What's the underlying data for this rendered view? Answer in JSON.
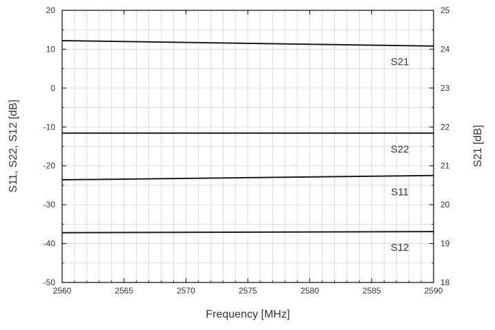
{
  "chart_data": {
    "type": "line",
    "xlabel": "Frequency [MHz]",
    "ylabel_left": "S11, S22, S12 [dB]",
    "ylabel_right": "S21 [dB]",
    "xlim": [
      2560,
      2590
    ],
    "ylim_left": [
      -50,
      20
    ],
    "ylim_right": [
      18,
      25
    ],
    "x_ticks": [
      "2560",
      "2565",
      "2570",
      "2575",
      "2580",
      "2585",
      "2590"
    ],
    "y_left_ticks": [
      "20",
      "10",
      "0",
      "-10",
      "-20",
      "-30",
      "-40",
      "-50"
    ],
    "y_right_ticks": [
      "25",
      "24",
      "23",
      "22",
      "21",
      "20",
      "19",
      "18"
    ],
    "grid": true,
    "series": [
      {
        "name": "S21",
        "axis": "right",
        "x": [
          2560,
          2590
        ],
        "values": [
          24.22,
          24.08
        ]
      },
      {
        "name": "S22",
        "axis": "left",
        "x": [
          2560,
          2590
        ],
        "values": [
          -11.6,
          -11.6
        ]
      },
      {
        "name": "S11",
        "axis": "left",
        "x": [
          2560,
          2590
        ],
        "values": [
          -23.6,
          -22.5
        ]
      },
      {
        "name": "S12",
        "axis": "left",
        "x": [
          2560,
          2590
        ],
        "values": [
          -37.2,
          -36.9
        ]
      }
    ],
    "labels": [
      "S21",
      "S22",
      "S11",
      "S12"
    ]
  }
}
